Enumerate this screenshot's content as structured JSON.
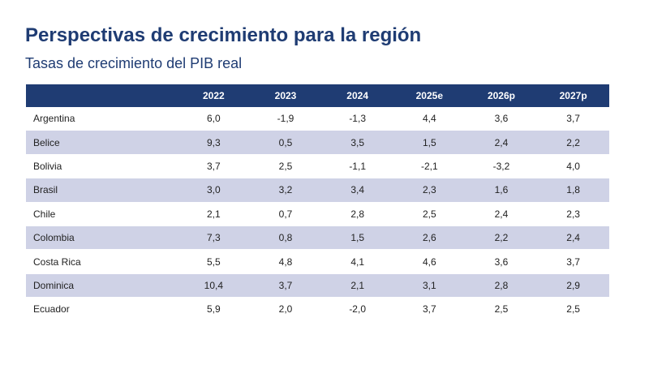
{
  "title": "Perspectivas de crecimiento para la región",
  "subtitle": "Tasas de crecimiento del PIB real",
  "colors": {
    "header_bg": "#1f3c73",
    "title": "#1f3c73",
    "stripe": "#cfd2e6"
  },
  "chart_data": {
    "type": "table",
    "title": "Perspectivas de crecimiento para la región",
    "subtitle": "Tasas de crecimiento del PIB real",
    "columns": [
      "",
      "2022",
      "2023",
      "2024",
      "2025e",
      "2026p",
      "2027p"
    ],
    "rows": [
      {
        "country": "Argentina",
        "values": [
          "6,0",
          "-1,9",
          "-1,3",
          "4,4",
          "3,6",
          "3,7"
        ]
      },
      {
        "country": "Belice",
        "values": [
          "9,3",
          "0,5",
          "3,5",
          "1,5",
          "2,4",
          "2,2"
        ]
      },
      {
        "country": "Bolivia",
        "values": [
          "3,7",
          "2,5",
          "-1,1",
          "-2,1",
          "-3,2",
          "4,0"
        ]
      },
      {
        "country": "Brasil",
        "values": [
          "3,0",
          "3,2",
          "3,4",
          "2,3",
          "1,6",
          "1,8"
        ]
      },
      {
        "country": "Chile",
        "values": [
          "2,1",
          "0,7",
          "2,8",
          "2,5",
          "2,4",
          "2,3"
        ]
      },
      {
        "country": "Colombia",
        "values": [
          "7,3",
          "0,8",
          "1,5",
          "2,6",
          "2,2",
          "2,4"
        ]
      },
      {
        "country": "Costa Rica",
        "values": [
          "5,5",
          "4,8",
          "4,1",
          "4,6",
          "3,6",
          "3,7"
        ]
      },
      {
        "country": "Dominica",
        "values": [
          "10,4",
          "3,7",
          "2,1",
          "3,1",
          "2,8",
          "2,9"
        ]
      },
      {
        "country": "Ecuador",
        "values": [
          "5,9",
          "2,0",
          "-2,0",
          "3,7",
          "2,5",
          "2,5"
        ]
      }
    ]
  }
}
